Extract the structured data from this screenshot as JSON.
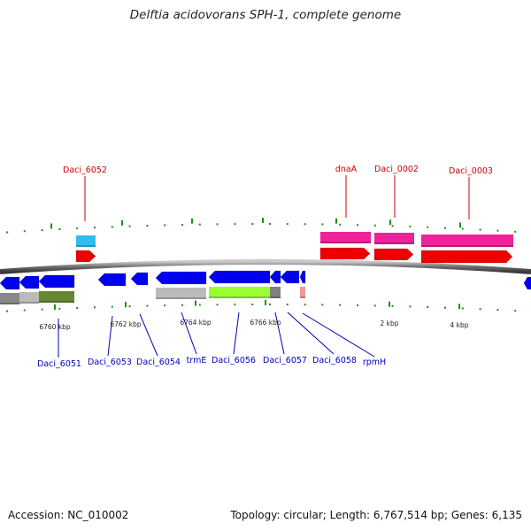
{
  "header": {
    "title": "Delftia acidovorans SPH-1, complete genome"
  },
  "footer": {
    "accession": "Accession: NC_010002",
    "summary": "Topology: circular; Length: 6,767,514 bp; Genes: 6,135"
  },
  "scale_labels": [
    "6760 kbp",
    "6762 kbp",
    "6764 kbp",
    "6766 kbp",
    "2 kbp",
    "4 kbp"
  ],
  "top_gene_labels": [
    "Daci_6052",
    "dnaA",
    "Daci_0002",
    "Daci_0003"
  ],
  "bottom_gene_labels": [
    "Daci_6051",
    "Daci_6053",
    "Daci_6054",
    "trmE",
    "Daci_6056",
    "Daci_6057",
    "Daci_6058",
    "rpmH"
  ],
  "colors": {
    "forward_cds": "#ee0000",
    "reverse_cds": "#0000ee",
    "forward_feature": "#ee2299",
    "backbone": "#808080",
    "tick": "#1c8f1c",
    "rna": "#33bbee",
    "function_green": "#99ff33",
    "function_olive": "#668833",
    "function_gray": "#bbbbbb",
    "label_red": "#cc0000",
    "label_blue": "#0000bb"
  }
}
